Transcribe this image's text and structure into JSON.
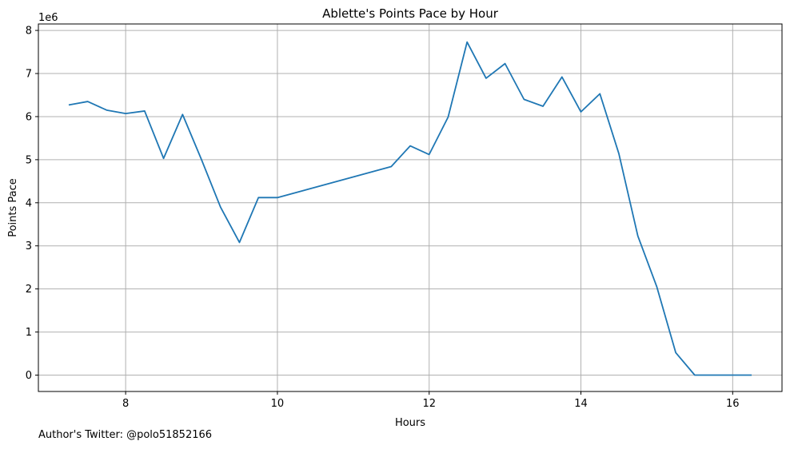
{
  "footer": {
    "author_note": "Author's Twitter: @polo51852166"
  },
  "chart_data": {
    "type": "line",
    "title": "Ablette's Points Pace by Hour",
    "xlabel": "Hours",
    "ylabel": "Points Pace",
    "y_offset_label": "1e6",
    "y_scale": 1000000,
    "xlim": [
      6.85,
      16.65
    ],
    "ylim": [
      -380000,
      8150000
    ],
    "x_ticks": [
      8,
      10,
      12,
      14,
      16
    ],
    "x_tick_labels": [
      "8",
      "10",
      "12",
      "14",
      "16"
    ],
    "y_ticks": [
      0,
      1000000,
      2000000,
      3000000,
      4000000,
      5000000,
      6000000,
      7000000,
      8000000
    ],
    "y_tick_labels": [
      "0",
      "1",
      "2",
      "3",
      "4",
      "5",
      "6",
      "7",
      "8"
    ],
    "grid": true,
    "legend": "none",
    "series": [
      {
        "color": "#1f77b4",
        "x": [
          7.25,
          7.5,
          7.75,
          8.0,
          8.25,
          8.5,
          8.75,
          9.0,
          9.25,
          9.5,
          9.75,
          10.0,
          11.5,
          11.75,
          12.0,
          12.25,
          12.5,
          12.75,
          13.0,
          13.25,
          13.5,
          13.75,
          14.0,
          14.25,
          14.5,
          14.75,
          15.0,
          15.25,
          15.5,
          15.75,
          16.0,
          16.25
        ],
        "y": [
          6270000,
          6350000,
          6150000,
          6070000,
          6130000,
          5030000,
          6050000,
          5000000,
          3900000,
          3080000,
          4120000,
          4120000,
          4840000,
          5320000,
          5120000,
          5990000,
          7730000,
          6890000,
          7230000,
          6400000,
          6240000,
          6920000,
          6110000,
          6530000,
          5140000,
          3230000,
          2050000,
          520000,
          0,
          0,
          0,
          0
        ]
      }
    ]
  }
}
